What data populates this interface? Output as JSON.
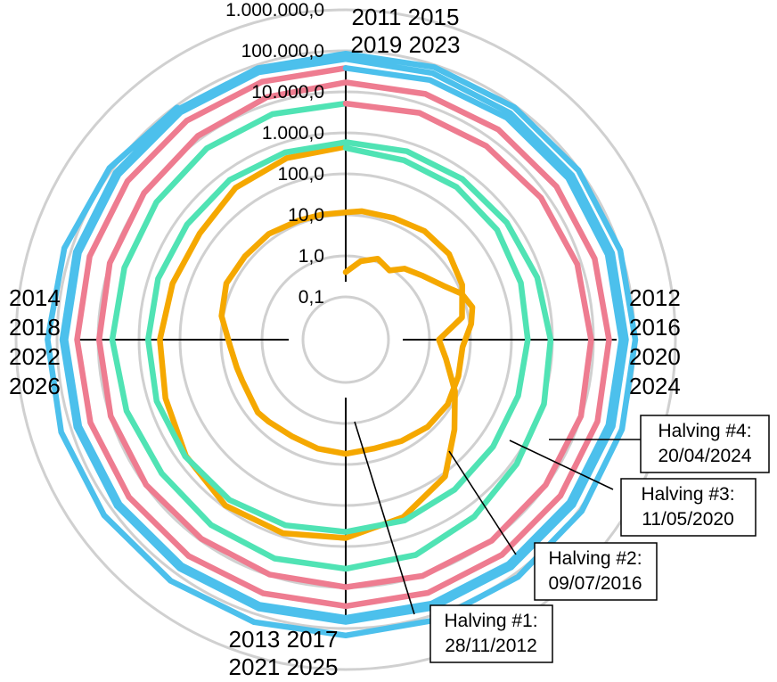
{
  "chart_data": {
    "type": "line",
    "subtype": "polar-spiral",
    "radial_scale": "log",
    "radial_ticks": [
      "0,1",
      "1,0",
      "10,0",
      "100,0",
      "1.000,0",
      "10.000,0",
      "100.000,0",
      "1.000.000,0"
    ],
    "radial_tick_values": [
      0.1,
      1,
      10,
      100,
      1000,
      10000,
      100000,
      1000000
    ],
    "angle_unit": "fraction of a year (clockwise from top)",
    "grid": true,
    "direction_labels": {
      "top": [
        "2011 2015",
        "2019 2023"
      ],
      "right": [
        "2012",
        "2016",
        "2020",
        "2024"
      ],
      "bottom": [
        "2013 2017",
        "2021 2025"
      ],
      "left": [
        "2014",
        "2018",
        "2022",
        "2026"
      ]
    },
    "series": [
      {
        "color": "#F5A800",
        "x": [
          0.0,
          0.03,
          0.06,
          0.09,
          0.11,
          0.14,
          0.17,
          0.19,
          0.21,
          0.23,
          0.26,
          0.3,
          0.34,
          0.38,
          0.42,
          0.46,
          0.5,
          0.54,
          0.58,
          0.62,
          0.64,
          0.66,
          0.69,
          0.71,
          0.74,
          0.78,
          0.82,
          0.86,
          0.9,
          0.94,
          0.97,
          1.0,
          1.02,
          1.06,
          1.1,
          1.14,
          1.18,
          1.22,
          1.25,
          1.28,
          1.32,
          1.36,
          1.4,
          1.45,
          1.5,
          1.55,
          1.6,
          1.65,
          1.7,
          1.75,
          1.8,
          1.85,
          1.9,
          1.95,
          2.0
        ],
        "y": [
          0.4,
          0.8,
          1.2,
          0.9,
          1.6,
          2.5,
          4.8,
          10,
          14,
          11,
          6.5,
          7,
          8,
          7.5,
          6,
          5,
          5.5,
          5,
          4.5,
          5,
          5.5,
          4.8,
          4.7,
          5,
          6,
          11,
          15,
          14,
          14,
          12,
          11.5,
          11.5,
          13,
          14,
          17,
          17,
          12.5,
          7,
          1.7,
          2.8,
          8,
          25,
          120,
          320,
          620,
          830,
          900,
          600,
          380,
          310,
          250,
          230,
          340,
          410,
          460
        ]
      },
      {
        "color": "#50E3B4",
        "x": [
          2.0,
          2.05,
          2.1,
          2.15,
          2.2,
          2.25,
          2.3,
          2.35,
          2.4,
          2.45,
          2.5,
          2.55,
          2.6,
          2.65,
          2.7,
          2.75,
          2.8,
          2.85,
          2.9,
          2.95,
          3.0,
          3.05,
          3.1,
          3.15,
          3.2,
          3.25,
          3.3,
          3.35,
          3.4,
          3.45,
          3.5,
          3.55,
          3.6,
          3.65,
          3.7,
          3.75,
          3.8,
          3.85,
          3.9,
          3.95,
          4.0
        ],
        "y": [
          430,
          360,
          360,
          330,
          280,
          250,
          240,
          250,
          300,
          390,
          440,
          520,
          610,
          630,
          640,
          600,
          590,
          550,
          590,
          570,
          590,
          610,
          630,
          650,
          740,
          900,
          1100,
          1300,
          1950,
          3000,
          3500,
          3700,
          3500,
          3200,
          3800,
          4500,
          4300,
          4600,
          5300,
          5500,
          5200
        ]
      },
      {
        "color": "#EE7C90",
        "x": [
          4.0,
          4.05,
          4.1,
          4.15,
          4.2,
          4.25,
          4.3,
          4.35,
          4.4,
          4.45,
          4.5,
          4.55,
          4.6,
          4.65,
          4.7,
          4.75,
          4.8,
          4.85,
          4.9,
          4.95,
          5.0,
          5.05,
          5.1,
          5.15,
          5.2,
          5.25,
          5.3,
          5.35,
          5.4,
          5.45,
          5.5,
          5.55,
          5.6,
          5.65,
          5.7,
          5.75,
          5.8,
          5.85,
          5.9,
          5.95,
          6.0
        ],
        "y": [
          5200,
          5900,
          6200,
          7000,
          7900,
          8800,
          9800,
          9700,
          10400,
          10300,
          9800,
          9500,
          9000,
          9500,
          9700,
          9400,
          10200,
          11000,
          12500,
          15000,
          17000,
          18000,
          19500,
          20500,
          22000,
          24000,
          26000,
          27000,
          27500,
          28000,
          28500,
          29000,
          30000,
          31000,
          32000,
          32500,
          33500,
          34500,
          36000,
          37000,
          38000
        ]
      },
      {
        "color": "#4CC0EC",
        "x": [
          6.0,
          6.05,
          6.1,
          6.15,
          6.2,
          6.25,
          6.3,
          6.35,
          6.4,
          6.45,
          6.5,
          6.55,
          6.6,
          6.65,
          6.7,
          6.75,
          6.8,
          6.85,
          6.9,
          6.95,
          7.0,
          7.05,
          7.1,
          7.15,
          7.2,
          7.25,
          7.3,
          7.35,
          7.4,
          7.45,
          7.5,
          7.55,
          7.6,
          7.65,
          7.7,
          7.75,
          7.8,
          7.85,
          7.9,
          7.95,
          8.0,
          8.05,
          8.1,
          8.15,
          8.2,
          8.25,
          8.3,
          8.35,
          8.4,
          8.45,
          8.5,
          8.55,
          8.6,
          8.65,
          8.7,
          8.75,
          8.8,
          8.85,
          8.9
        ],
        "y": [
          38000,
          41000,
          44000,
          46000,
          47500,
          48500,
          49500,
          50500,
          52000,
          53000,
          55000,
          57000,
          58000,
          60000,
          62000,
          62500,
          63500,
          64000,
          64500,
          65000,
          63000,
          62000,
          61000,
          60500,
          61500,
          62000,
          63500,
          65000,
          66000,
          67500,
          69000,
          70000,
          71000,
          72000,
          73000,
          74000,
          76000,
          78000,
          80000,
          82000,
          85000,
          88000,
          91000,
          95000,
          100000,
          105000,
          110000,
          118000,
          128000,
          138000,
          148000,
          158000,
          168000,
          175000,
          180000,
          170000,
          150000,
          120000,
          90000
        ]
      }
    ],
    "annotations": [
      {
        "line1": "Halving #1:",
        "line2": "28/11/2012",
        "x": 1.9,
        "y": 130
      },
      {
        "line1": "Halving #2:",
        "line2": "09/07/2016",
        "x": 5.52,
        "y": 730
      },
      {
        "line1": "Halving #3:",
        "line2": "11/05/2020",
        "x": 9.36,
        "y": 9000
      },
      {
        "line1": "Halving #4:",
        "line2": "20/04/2024",
        "x": 13.3,
        "y": 64000
      }
    ]
  }
}
